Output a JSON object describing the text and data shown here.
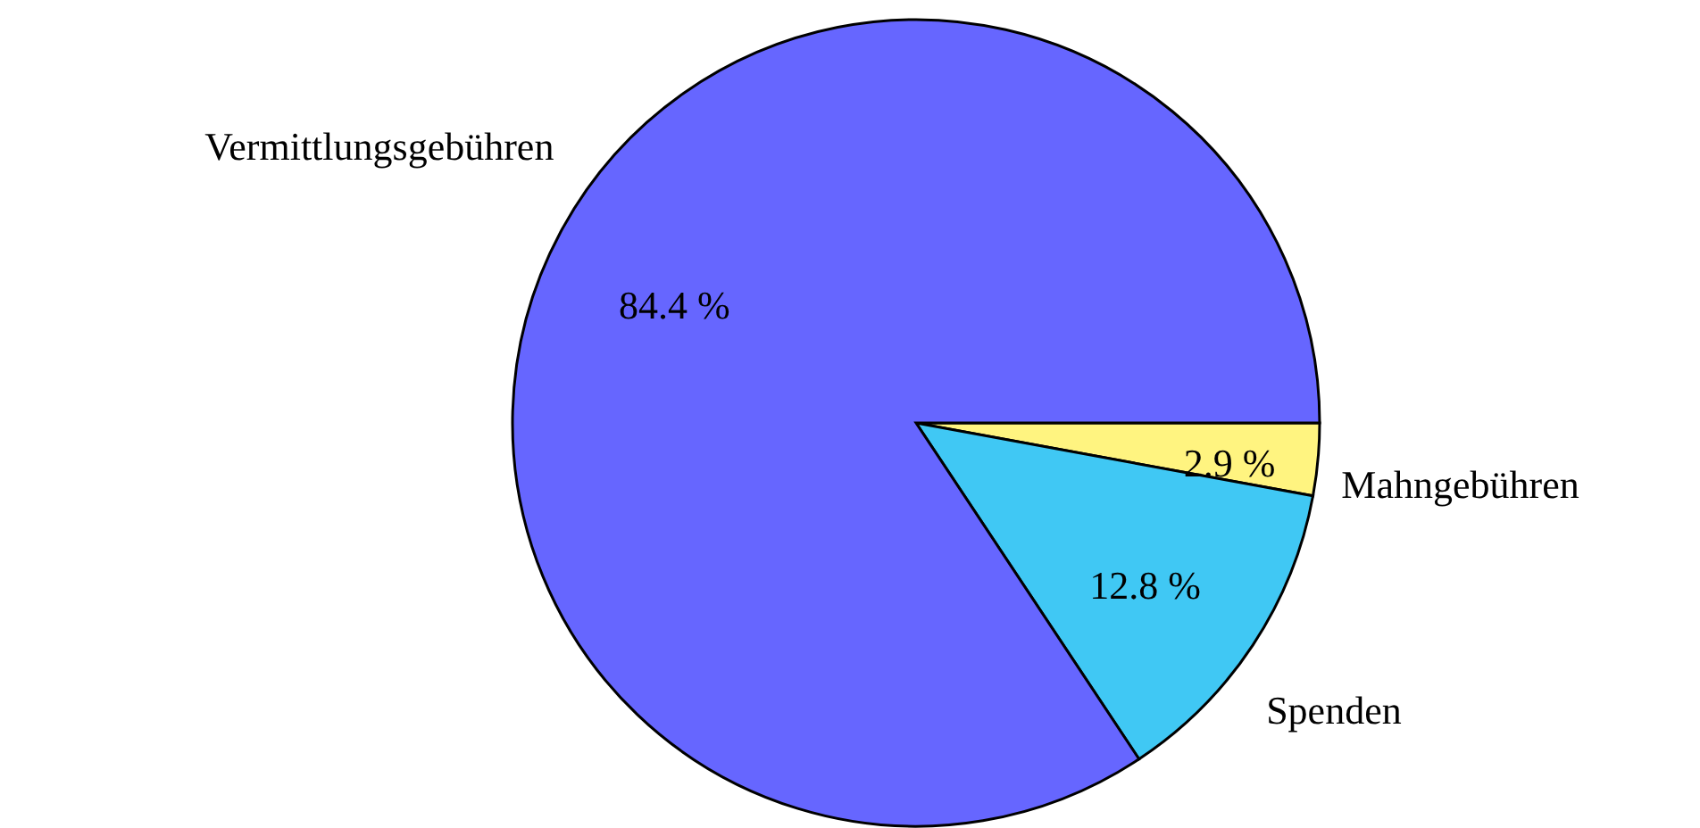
{
  "chart_data": {
    "type": "pie",
    "categories": [
      "Mahngebühren",
      "Spenden",
      "Vermittlungsgebühren"
    ],
    "values": [
      2.9,
      12.8,
      84.4
    ],
    "value_labels": [
      "2.9 %",
      "12.8 %",
      "84.4 %"
    ],
    "colors": [
      "#fff480",
      "#40c8f4",
      "#6666ff"
    ]
  }
}
